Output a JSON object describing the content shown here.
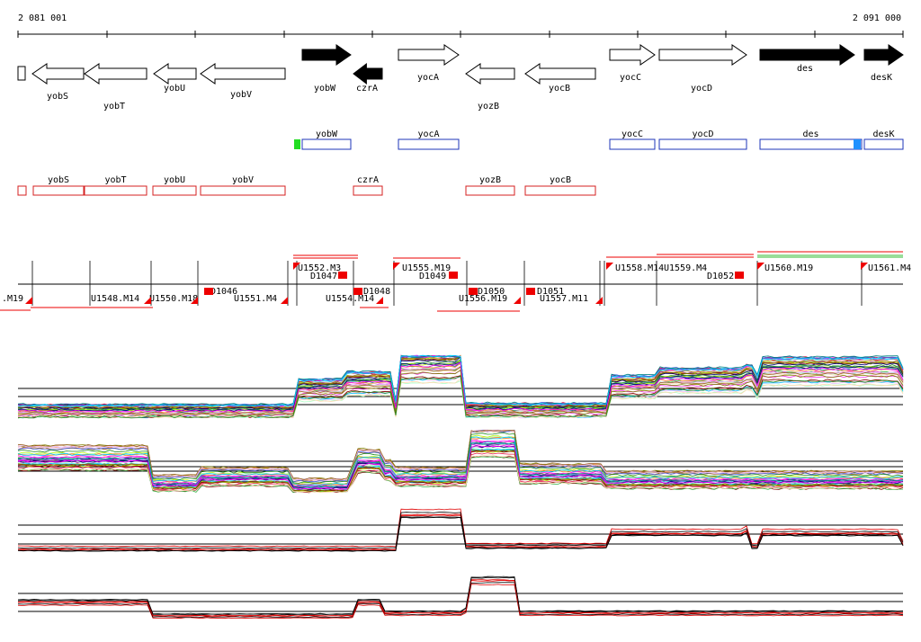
{
  "coordinates": {
    "start": "2 081 001",
    "end": "2 091 000"
  },
  "colors": {
    "gene_fill_dark": "#000000",
    "gene_fill_light": "#ffffff",
    "protein_box": "#1e35b8",
    "rna_box": "#d42020",
    "segment_marker": "#ee0000",
    "start_marker": "#22dd22",
    "end_marker": "#1e90ff",
    "line_normal": "#000000",
    "line_alt": "#e00000"
  },
  "genes": [
    {
      "name": "yobS",
      "strand": "-",
      "filled": false
    },
    {
      "name": "yobT",
      "strand": "-",
      "filled": false
    },
    {
      "name": "yobU",
      "strand": "-",
      "filled": false
    },
    {
      "name": "yobV",
      "strand": "-",
      "filled": false
    },
    {
      "name": "yobW",
      "strand": "+",
      "filled": true
    },
    {
      "name": "czrA",
      "strand": "-",
      "filled": true
    },
    {
      "name": "yocA",
      "strand": "+",
      "filled": false
    },
    {
      "name": "yozB",
      "strand": "-",
      "filled": false
    },
    {
      "name": "yocB",
      "strand": "-",
      "filled": false
    },
    {
      "name": "yocC",
      "strand": "+",
      "filled": false
    },
    {
      "name": "yocD",
      "strand": "+",
      "filled": false
    },
    {
      "name": "des",
      "strand": "+",
      "filled": true
    },
    {
      "name": "desK",
      "strand": "+",
      "filled": true
    }
  ],
  "protein_track": [
    "yobW",
    "yocA",
    "yocC",
    "yocD",
    "des",
    "desK"
  ],
  "rna_track": [
    "yobS",
    "yobT",
    "yobU",
    "yobV",
    "czrA",
    "yozB",
    "yocB"
  ],
  "segments_upper": [
    "U1552.M3",
    "D1047",
    "U1555.M19",
    "D1049",
    "U1558.M14",
    "U1559.M4",
    "D1052",
    "U1560.M19",
    "U1561.M4"
  ],
  "segments_lower": [
    ".M19",
    "U1548.M14",
    "U1550.M18",
    "D1046",
    "U1551.M4",
    "U1554.M14",
    "D1048",
    "D1050",
    "U1556.M19",
    "D1051",
    "U1557.M11"
  ],
  "expression_tracks": [
    {
      "id": "profile-1",
      "series_count": 40
    },
    {
      "id": "profile-2",
      "series_count": 40
    },
    {
      "id": "profile-3",
      "series_count": 6
    },
    {
      "id": "profile-4",
      "series_count": 6
    }
  ]
}
